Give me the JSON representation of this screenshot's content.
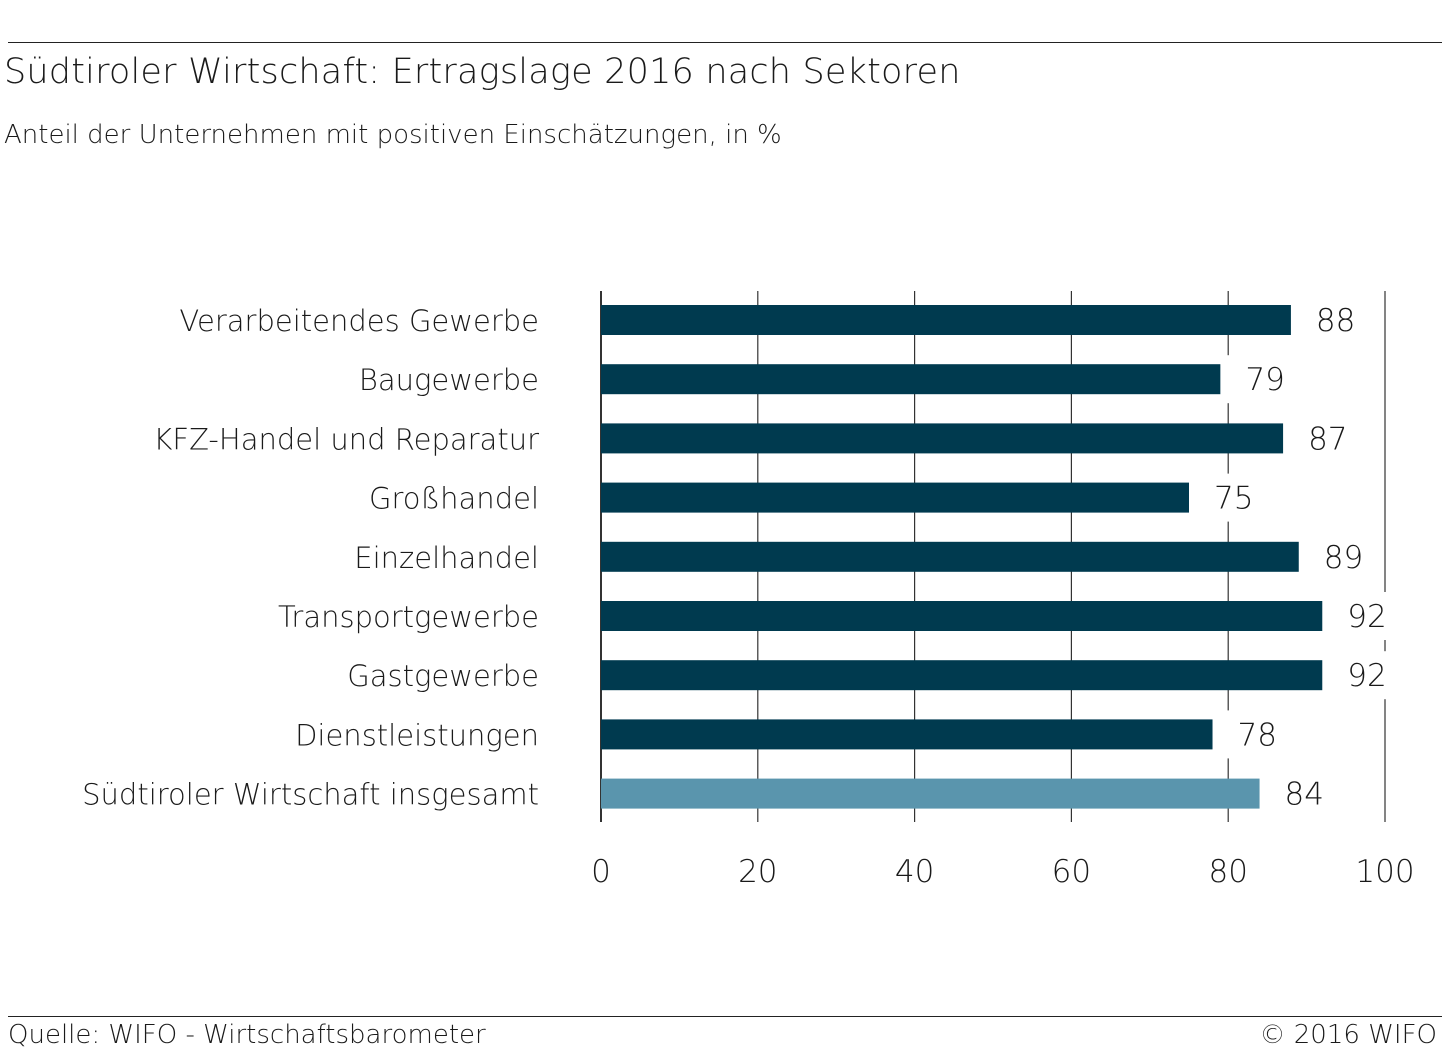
{
  "chart_data": {
    "type": "bar",
    "orientation": "horizontal",
    "title": "Südtiroler Wirtschaft: Ertragslage 2016 nach Sektoren",
    "subtitle": "Anteil der Unternehmen mit positiven Einschätzungen, in %",
    "categories": [
      "Verarbeitendes Gewerbe",
      "Baugewerbe",
      "KFZ-Handel und Reparatur",
      "Großhandel",
      "Einzelhandel",
      "Transportgewerbe",
      "Gastgewerbe",
      "Dienstleistungen",
      "Südtiroler Wirtschaft insgesamt"
    ],
    "values": [
      88,
      79,
      87,
      75,
      89,
      92,
      92,
      78,
      84
    ],
    "value_labels": [
      "88",
      "79",
      "87",
      "75",
      "89",
      "92",
      "92",
      "78",
      "84"
    ],
    "xlim": [
      0,
      100
    ],
    "xticks": [
      "0",
      "20",
      "40",
      "60",
      "80",
      "100"
    ],
    "grid": "vertical",
    "colors": {
      "bar": "#003a4f",
      "total_bar": "#5a95ad",
      "grid": "#333333"
    },
    "highlight_category": "Südtiroler Wirtschaft insgesamt"
  },
  "footer": {
    "source": "Quelle: WIFO - Wirtschaftsbarometer",
    "copyright": "© 2016 WIFO"
  }
}
